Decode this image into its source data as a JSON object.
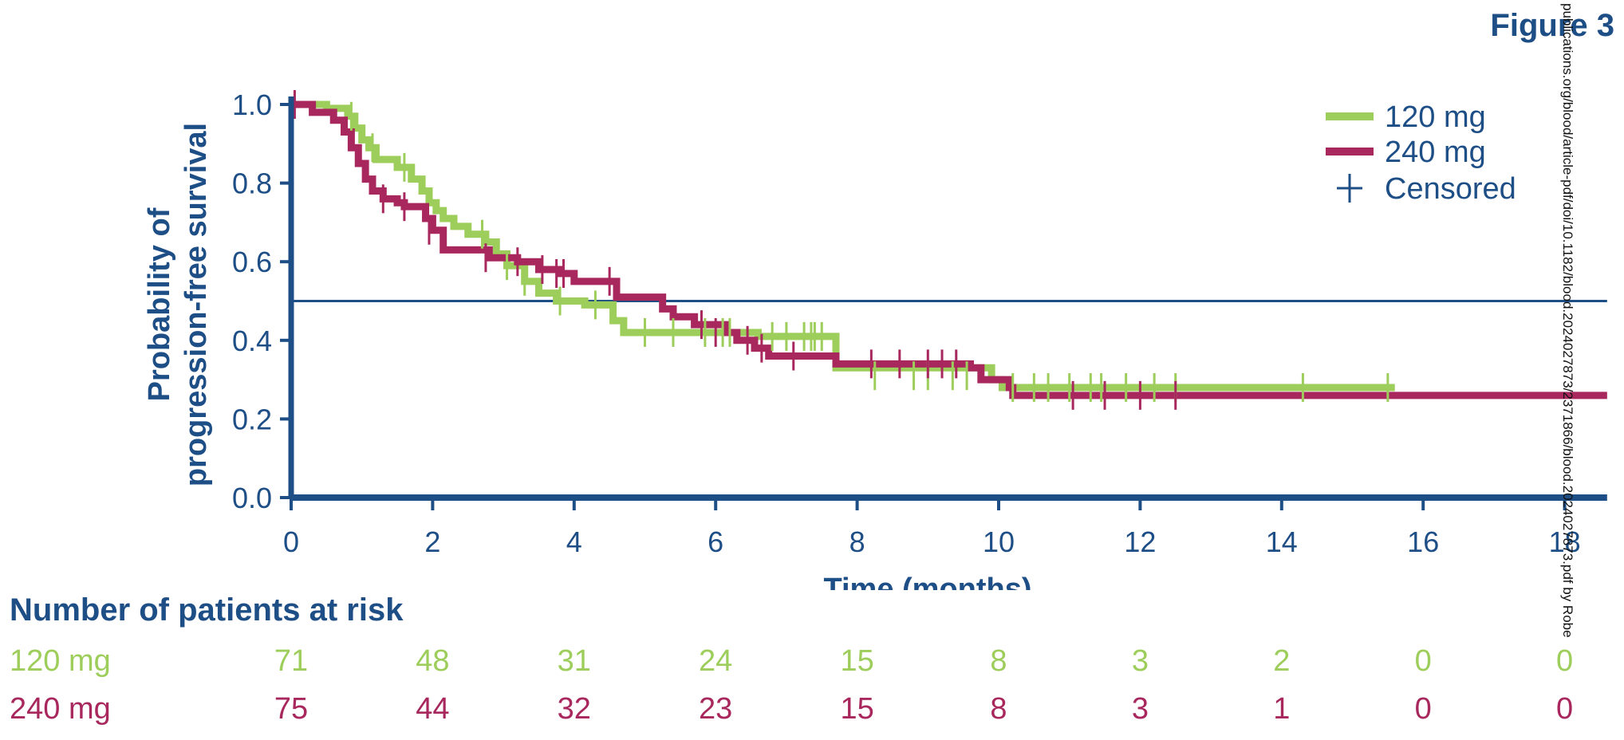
{
  "figure_label": "Figure 3",
  "watermark": "publications.org/blood/article-pdf/doi/10.1182/blood.2024027873/2371866/blood.2024027873.pdf by Robe",
  "risk_table": {
    "title": "Number of patients at risk",
    "times": [
      0,
      2,
      4,
      6,
      8,
      10,
      12,
      14,
      16,
      18
    ],
    "rows": [
      {
        "label": "120 mg",
        "color": "#9dcd5a",
        "values": [
          "71",
          "48",
          "31",
          "24",
          "15",
          "8",
          "3",
          "2",
          "0",
          "0"
        ]
      },
      {
        "label": "240 mg",
        "color": "#a8285e",
        "values": [
          "75",
          "44",
          "32",
          "23",
          "15",
          "8",
          "3",
          "1",
          "0",
          "0"
        ]
      }
    ]
  },
  "chart_data": {
    "type": "line",
    "subtype": "kaplan-meier-step",
    "xlabel": "Time (months)",
    "ylabel_line1": "Probability of",
    "ylabel_line2": "progression-free survival",
    "xlim": [
      0,
      18.6
    ],
    "ylim": [
      0,
      1.0
    ],
    "xticks": [
      0,
      2,
      4,
      6,
      8,
      10,
      12,
      14,
      16,
      18
    ],
    "yticks": [
      "0.0",
      "0.2",
      "0.4",
      "0.6",
      "0.8",
      "1.0"
    ],
    "reference_line": 0.5,
    "axis_color": "#1e4e86",
    "legend": {
      "position": "top-right",
      "censored_label": "Censored"
    },
    "series": [
      {
        "name": "120 mg",
        "color": "#9dcd5a",
        "x": [
          0,
          0.5,
          0.8,
          0.9,
          1.0,
          1.1,
          1.2,
          1.5,
          1.7,
          1.85,
          1.95,
          2.05,
          2.15,
          2.3,
          2.5,
          2.75,
          2.9,
          3.05,
          3.3,
          3.5,
          3.75,
          4.15,
          4.55,
          4.7,
          6.6,
          7.7,
          9.9,
          10.05,
          15.6
        ],
        "y": [
          1.0,
          0.99,
          0.97,
          0.94,
          0.91,
          0.89,
          0.86,
          0.84,
          0.81,
          0.78,
          0.75,
          0.73,
          0.71,
          0.69,
          0.67,
          0.65,
          0.62,
          0.59,
          0.55,
          0.52,
          0.5,
          0.49,
          0.45,
          0.42,
          0.41,
          0.33,
          0.3,
          0.28,
          0.28
        ],
        "censored": [
          [
            0.85,
            0.97
          ],
          [
            1.15,
            0.89
          ],
          [
            1.6,
            0.84
          ],
          [
            2.7,
            0.67
          ],
          [
            3.05,
            0.59
          ],
          [
            3.3,
            0.55
          ],
          [
            3.8,
            0.5
          ],
          [
            4.3,
            0.49
          ],
          [
            5.0,
            0.42
          ],
          [
            5.4,
            0.42
          ],
          [
            5.85,
            0.42
          ],
          [
            6.1,
            0.42
          ],
          [
            6.2,
            0.42
          ],
          [
            6.8,
            0.41
          ],
          [
            7.0,
            0.41
          ],
          [
            7.25,
            0.41
          ],
          [
            7.35,
            0.41
          ],
          [
            7.4,
            0.41
          ],
          [
            7.5,
            0.41
          ],
          [
            8.25,
            0.31
          ],
          [
            8.8,
            0.31
          ],
          [
            9.0,
            0.31
          ],
          [
            9.35,
            0.31
          ],
          [
            9.55,
            0.31
          ],
          [
            10.2,
            0.28
          ],
          [
            10.5,
            0.28
          ],
          [
            10.7,
            0.28
          ],
          [
            11.0,
            0.28
          ],
          [
            11.3,
            0.28
          ],
          [
            11.45,
            0.28
          ],
          [
            11.8,
            0.28
          ],
          [
            12.2,
            0.28
          ],
          [
            12.5,
            0.28
          ],
          [
            14.3,
            0.28
          ],
          [
            15.5,
            0.28
          ]
        ]
      },
      {
        "name": "240 mg",
        "color": "#a8285e",
        "x": [
          0,
          0.3,
          0.6,
          0.75,
          0.85,
          0.95,
          1.05,
          1.15,
          1.3,
          1.5,
          1.6,
          1.9,
          2.0,
          2.15,
          2.8,
          3.2,
          3.5,
          3.8,
          4.0,
          4.6,
          5.25,
          5.4,
          5.7,
          6.15,
          6.3,
          6.55,
          6.75,
          7.7,
          9.6,
          9.75,
          10.15,
          10.2,
          18.6
        ],
        "y": [
          1.0,
          0.98,
          0.96,
          0.93,
          0.89,
          0.85,
          0.81,
          0.78,
          0.76,
          0.75,
          0.74,
          0.71,
          0.68,
          0.63,
          0.61,
          0.6,
          0.58,
          0.57,
          0.55,
          0.51,
          0.48,
          0.46,
          0.44,
          0.42,
          0.4,
          0.38,
          0.36,
          0.34,
          0.33,
          0.3,
          0.28,
          0.26,
          0.26
        ],
        "censored": [
          [
            0.05,
            1.0
          ],
          [
            1.3,
            0.76
          ],
          [
            1.6,
            0.74
          ],
          [
            1.95,
            0.68
          ],
          [
            2.75,
            0.61
          ],
          [
            3.2,
            0.6
          ],
          [
            3.55,
            0.58
          ],
          [
            3.75,
            0.57
          ],
          [
            3.85,
            0.57
          ],
          [
            4.5,
            0.55
          ],
          [
            5.8,
            0.44
          ],
          [
            6.0,
            0.42
          ],
          [
            6.45,
            0.4
          ],
          [
            6.65,
            0.38
          ],
          [
            7.1,
            0.36
          ],
          [
            8.2,
            0.34
          ],
          [
            8.6,
            0.34
          ],
          [
            9.0,
            0.34
          ],
          [
            9.2,
            0.34
          ],
          [
            9.4,
            0.34
          ],
          [
            11.05,
            0.26
          ],
          [
            11.5,
            0.26
          ],
          [
            12.0,
            0.26
          ],
          [
            12.5,
            0.26
          ]
        ]
      }
    ]
  }
}
